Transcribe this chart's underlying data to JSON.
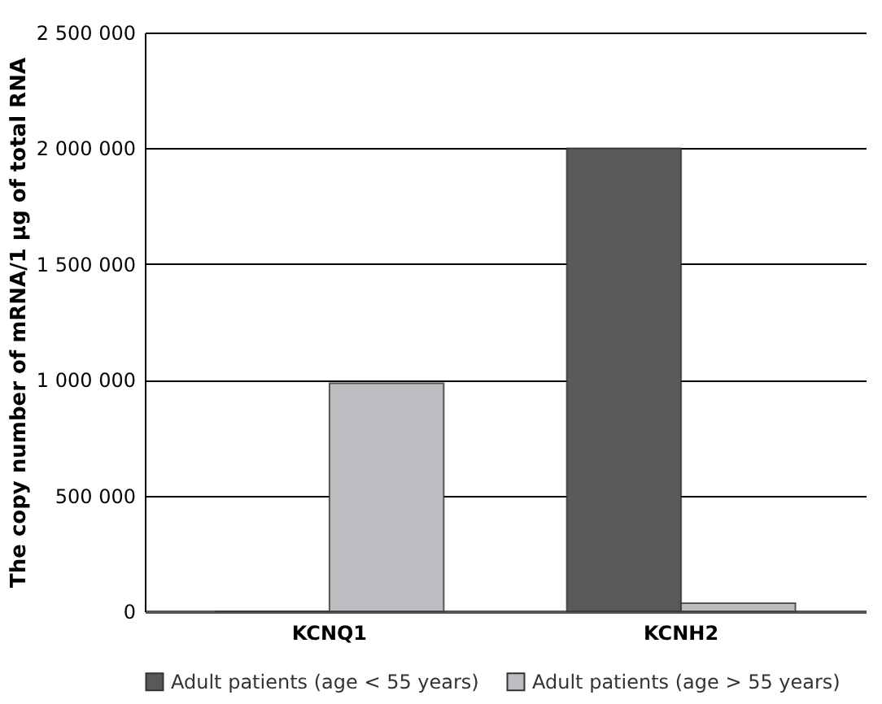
{
  "chart_data": {
    "type": "bar",
    "ylabel": "The copy number of mRNA/1 µg of total RNA",
    "categories": [
      "KCNQ1",
      "KCNH2"
    ],
    "series": [
      {
        "name": "Adult patients (age < 55 years)",
        "color": "#58595b",
        "values": [
          0,
          2000000
        ]
      },
      {
        "name": "Adult patients (age > 55 years)",
        "color": "#bcbdc1",
        "values": [
          985000,
          35000
        ]
      }
    ],
    "ylim": [
      0,
      2500000
    ],
    "yticks": [
      {
        "value": 0,
        "label": "0"
      },
      {
        "value": 500000,
        "label": "500 000"
      },
      {
        "value": 1000000,
        "label": "1 000 000"
      },
      {
        "value": 1500000,
        "label": "1 500 000"
      },
      {
        "value": 2000000,
        "label": "2 000 000"
      },
      {
        "value": 2500000,
        "label": "2 500 000"
      }
    ],
    "grid": "y",
    "legend": "bottom"
  }
}
